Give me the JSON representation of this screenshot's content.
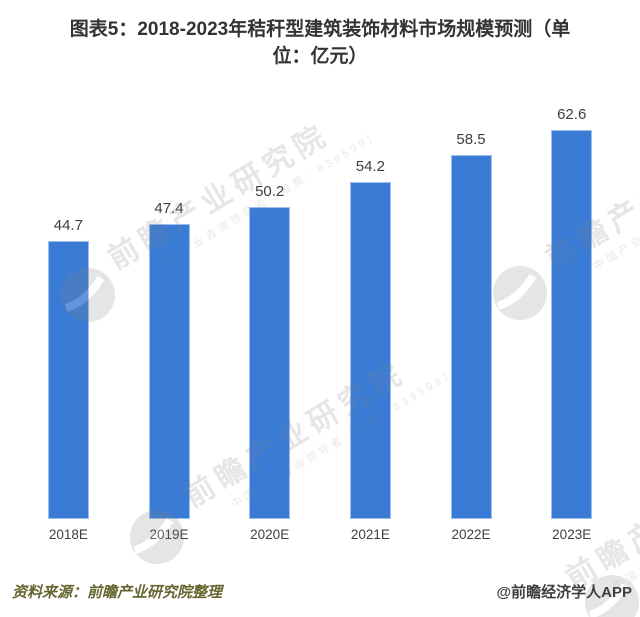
{
  "page": {
    "title_line1": "图表5：2018-2023年秸秆型建筑装饰材料市场规模预测（单",
    "title_line2": "位：亿元）"
  },
  "chart_data": {
    "type": "bar",
    "title": "图表5：2018-2023年秸秆型建筑装饰材料市场规模预测（单位：亿元）",
    "unit": "亿元",
    "categories": [
      "2018E",
      "2019E",
      "2020E",
      "2021E",
      "2022E",
      "2023E"
    ],
    "values": [
      44.7,
      47.4,
      50.2,
      54.2,
      58.5,
      62.6
    ],
    "ylim": [
      0,
      65
    ],
    "grid": false,
    "legend": "none",
    "value_labels": true
  },
  "watermark": {
    "brand": "前瞻产业研究院",
    "tagline": "中国产业咨询领导者（股票：839599）",
    "logo": "qianzhan-circle-logo"
  },
  "footer": {
    "source": "资料来源：前瞻产业研究院整理",
    "credit": "@前瞻经济学人APP"
  },
  "colors": {
    "bar": "#3A7BD5",
    "bar_edge": "#9dbfee",
    "title_text": "#333333",
    "value_text": "#3d3d3d",
    "axis_text": "#3f3f3f",
    "source_text": "#666630",
    "credit_text": "#3f3f3f",
    "watermark": "#808080",
    "background": "#ffffff"
  }
}
